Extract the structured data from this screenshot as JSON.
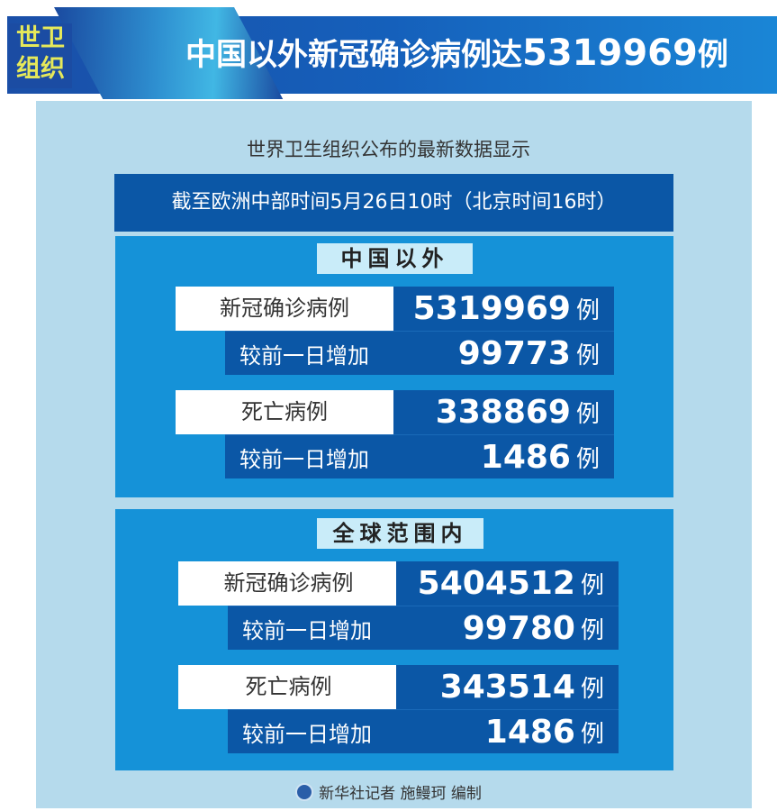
{
  "header": {
    "badge": [
      "世卫",
      "组织"
    ],
    "title_text": "中国以外新冠确诊病例达",
    "title_number": "5319969",
    "title_unit": "例"
  },
  "subtitle": "世界卫生组织公布的最新数据显示",
  "date_line": "截至欧洲中部时间5月26日10时（北京时间16时）",
  "sections": [
    {
      "label": "中国以外",
      "rows": [
        {
          "label": "新冠确诊病例",
          "value": "5319969",
          "unit": "例",
          "increase_label": "较前一日增加",
          "increase": "99773",
          "increase_unit": "例"
        },
        {
          "label": "死亡病例",
          "value": "338869",
          "unit": "例",
          "increase_label": "较前一日增加",
          "increase": "1486",
          "increase_unit": "例"
        }
      ]
    },
    {
      "label": "全球范围内",
      "rows": [
        {
          "label": "新冠确诊病例",
          "value": "5404512",
          "unit": "例",
          "increase_label": "较前一日增加",
          "increase": "99780",
          "increase_unit": "例"
        },
        {
          "label": "死亡病例",
          "value": "343514",
          "unit": "例",
          "increase_label": "较前一日增加",
          "increase": "1486",
          "increase_unit": "例"
        }
      ]
    }
  ],
  "footer": "新华社记者 施鳗珂 编制",
  "colors": {
    "dark_blue": "#0b57a6",
    "mid_blue": "#1592d8",
    "light_panel": "#b5daec",
    "badge_text": "#e6e95a"
  }
}
